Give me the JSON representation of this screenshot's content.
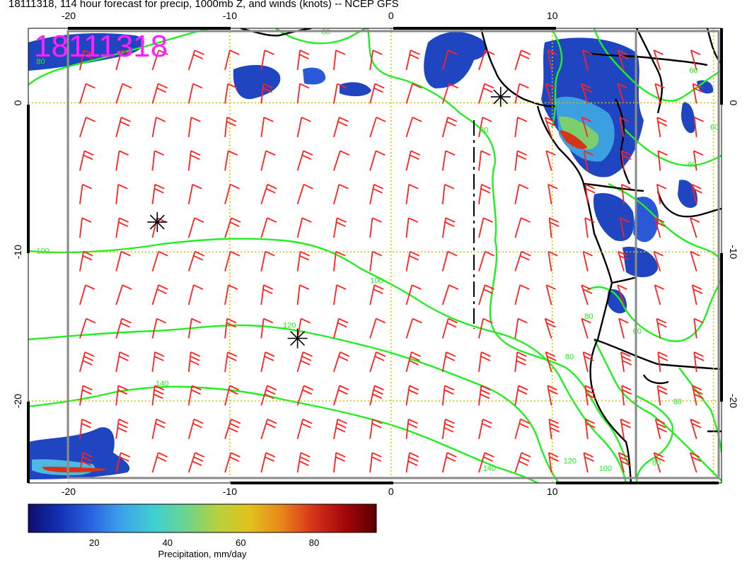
{
  "title": "18111318, 114 hour forecast for precip, 1000mb Z, and winds (knots) -- NCEP GFS",
  "timestamp_label": "18111318",
  "map": {
    "lon_range": [
      -22.5,
      20.5
    ],
    "lat_range": [
      -25.5,
      5
    ],
    "top_lon_ticks": [
      "-20",
      "-10",
      "0",
      "10"
    ],
    "bottom_lon_ticks": [
      "-20",
      "-10",
      "0",
      "10"
    ],
    "left_lat_ticks": [
      "0",
      "-10",
      "-20"
    ],
    "right_lat_ticks": [
      "0",
      "-10",
      "-20"
    ],
    "grid_lons": [
      -20,
      -10,
      0,
      10,
      20
    ],
    "grid_lats": [
      0,
      -10,
      -20
    ],
    "contour_labels": [
      {
        "text": "80",
        "lon": -22,
        "lat": 2.6
      },
      {
        "text": "80",
        "lon": -4.3,
        "lat": 4.6
      },
      {
        "text": "80",
        "lon": 5.5,
        "lat": -2
      },
      {
        "text": "60",
        "lon": 18.5,
        "lat": 2
      },
      {
        "text": "60",
        "lon": 19.8,
        "lat": -1.8
      },
      {
        "text": "60",
        "lon": 18.4,
        "lat": -4.3
      },
      {
        "text": "60",
        "lon": 15,
        "lat": -15.5
      },
      {
        "text": "80",
        "lon": 10.8,
        "lat": -17.2
      },
      {
        "text": "80",
        "lon": 12,
        "lat": -14.5
      },
      {
        "text": "80",
        "lon": 17.5,
        "lat": -20.2
      },
      {
        "text": "80",
        "lon": 16.2,
        "lat": -24.3
      },
      {
        "text": "100",
        "lon": -22,
        "lat": -10.1
      },
      {
        "text": "100",
        "lon": -1.3,
        "lat": -12.1
      },
      {
        "text": "100",
        "lon": 12.9,
        "lat": -24.7
      },
      {
        "text": "120",
        "lon": -6.7,
        "lat": -15.1
      },
      {
        "text": "120",
        "lon": 10.7,
        "lat": -24.2
      },
      {
        "text": "140",
        "lon": -14.6,
        "lat": -19
      },
      {
        "text": "140",
        "lon": 5.7,
        "lat": -24.7
      }
    ],
    "pressure_centers": [
      {
        "lon": -14.5,
        "lat": -8
      },
      {
        "lon": -5.8,
        "lat": -15.8
      },
      {
        "lon": 6.8,
        "lat": 0.4
      }
    ]
  },
  "colorbar": {
    "label": "Precipitation, mm/day",
    "ticks": [
      {
        "value": 20,
        "text": "20"
      },
      {
        "value": 40,
        "text": "40"
      },
      {
        "value": 60,
        "text": "60"
      },
      {
        "value": 80,
        "text": "80"
      }
    ],
    "range": [
      2,
      97
    ],
    "colors": [
      "#0d0d6e",
      "#1530b5",
      "#2a64e0",
      "#3ca6e8",
      "#3fd0cf",
      "#6cd48e",
      "#b8d13c",
      "#e0c21d",
      "#e8861a",
      "#d63318",
      "#a4070a",
      "#5a0000"
    ]
  },
  "colors": {
    "wind_barb": "#ff2020",
    "contour": "#22ee22",
    "coastline": "#000000",
    "grid": "#d0c200",
    "label": "#ff22ff"
  }
}
